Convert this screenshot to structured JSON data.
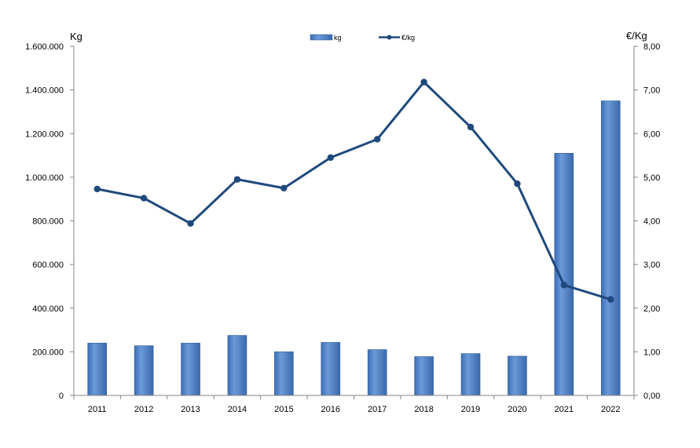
{
  "chart_data": {
    "type": "bar",
    "categories": [
      "2011",
      "2012",
      "2013",
      "2014",
      "2015",
      "2016",
      "2017",
      "2018",
      "2019",
      "2020",
      "2021",
      "2022"
    ],
    "series": [
      {
        "name": "kg",
        "type": "bar",
        "axis": "left",
        "values": [
          240000,
          228000,
          240000,
          275000,
          200000,
          243000,
          210000,
          178000,
          192000,
          180000,
          1110000,
          1350000
        ]
      },
      {
        "name": "€/kg",
        "type": "line",
        "axis": "right",
        "values": [
          4.73,
          4.52,
          3.94,
          4.95,
          4.75,
          5.45,
          5.87,
          7.18,
          6.15,
          4.85,
          2.53,
          2.2
        ]
      }
    ],
    "ylabel_left": "Kg",
    "ylabel_right": "€/Kg",
    "ylim_left": [
      0,
      1600000
    ],
    "ylim_right": [
      0,
      8
    ],
    "yticks_left": [
      "0",
      "200.000",
      "400.000",
      "600.000",
      "800.000",
      "1.000.000",
      "1.200.000",
      "1.400.000",
      "1.600.000"
    ],
    "yticks_right": [
      "0,00",
      "1,00",
      "2,00",
      "3,00",
      "4,00",
      "5,00",
      "6,00",
      "7,00",
      "8,00"
    ],
    "legend_position": "top-center",
    "grid": false,
    "colors": {
      "bar": "#5a8acd",
      "bar_dark": "#2f5f9e",
      "line": "#1f497d"
    }
  }
}
